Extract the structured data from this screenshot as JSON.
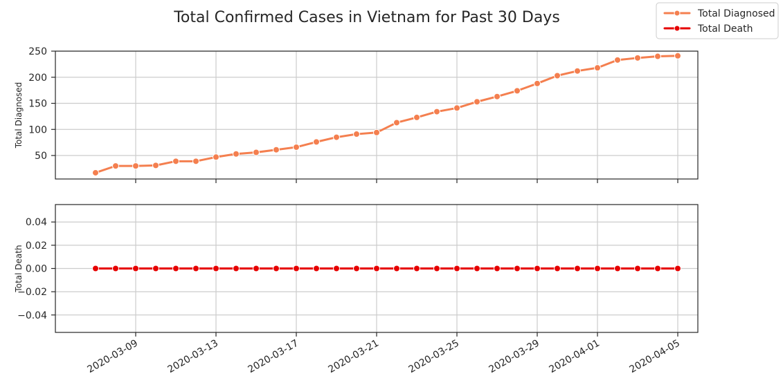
{
  "figure": {
    "title": "Total Confirmed Cases in Vietnam for Past 30 Days"
  },
  "legend": {
    "placement": "top-right",
    "entries": [
      {
        "label": "Total Diagnosed",
        "color": "#f47f4f"
      },
      {
        "label": "Total Death",
        "color": "#e60000"
      }
    ]
  },
  "chart_data": [
    {
      "type": "line",
      "ylabel": "Total Diagnosed",
      "color": "#f47f4f",
      "ylim": [
        5,
        250
      ],
      "yticks": [
        50,
        100,
        150,
        200,
        250
      ],
      "ytick_labels": [
        "50",
        "100",
        "150",
        "200",
        "250"
      ],
      "grid": true,
      "x": [
        "2020-03-07",
        "2020-03-08",
        "2020-03-09",
        "2020-03-10",
        "2020-03-11",
        "2020-03-12",
        "2020-03-13",
        "2020-03-14",
        "2020-03-15",
        "2020-03-16",
        "2020-03-17",
        "2020-03-18",
        "2020-03-19",
        "2020-03-20",
        "2020-03-21",
        "2020-03-22",
        "2020-03-23",
        "2020-03-24",
        "2020-03-25",
        "2020-03-26",
        "2020-03-27",
        "2020-03-28",
        "2020-03-29",
        "2020-03-30",
        "2020-03-31",
        "2020-04-01",
        "2020-04-02",
        "2020-04-03",
        "2020-04-04",
        "2020-04-05"
      ],
      "values": [
        17,
        30,
        30,
        31,
        39,
        39,
        47,
        53,
        56,
        61,
        66,
        76,
        85,
        91,
        94,
        113,
        123,
        134,
        141,
        153,
        163,
        174,
        188,
        203,
        212,
        218,
        233,
        237,
        240,
        241
      ]
    },
    {
      "type": "line",
      "ylabel": "Total Death",
      "color": "#e60000",
      "ylim": [
        -0.055,
        0.055
      ],
      "yticks": [
        -0.04,
        -0.02,
        0.0,
        0.02,
        0.04
      ],
      "ytick_labels": [
        "−0.04",
        "−0.02",
        "0.00",
        "0.02",
        "0.04"
      ],
      "grid": true,
      "x": [
        "2020-03-07",
        "2020-03-08",
        "2020-03-09",
        "2020-03-10",
        "2020-03-11",
        "2020-03-12",
        "2020-03-13",
        "2020-03-14",
        "2020-03-15",
        "2020-03-16",
        "2020-03-17",
        "2020-03-18",
        "2020-03-19",
        "2020-03-20",
        "2020-03-21",
        "2020-03-22",
        "2020-03-23",
        "2020-03-24",
        "2020-03-25",
        "2020-03-26",
        "2020-03-27",
        "2020-03-28",
        "2020-03-29",
        "2020-03-30",
        "2020-03-31",
        "2020-04-01",
        "2020-04-02",
        "2020-04-03",
        "2020-04-04",
        "2020-04-05"
      ],
      "values": [
        0,
        0,
        0,
        0,
        0,
        0,
        0,
        0,
        0,
        0,
        0,
        0,
        0,
        0,
        0,
        0,
        0,
        0,
        0,
        0,
        0,
        0,
        0,
        0,
        0,
        0,
        0,
        0,
        0,
        0
      ]
    }
  ],
  "xaxis": {
    "xlim": [
      "2020-03-05",
      "2020-04-06"
    ],
    "ticks": [
      "2020-03-09",
      "2020-03-13",
      "2020-03-17",
      "2020-03-21",
      "2020-03-25",
      "2020-03-29",
      "2020-04-01",
      "2020-04-05"
    ],
    "tick_labels": [
      "2020-03-09",
      "2020-03-13",
      "2020-03-17",
      "2020-03-21",
      "2020-03-25",
      "2020-03-29",
      "2020-04-01",
      "2020-04-05"
    ]
  }
}
